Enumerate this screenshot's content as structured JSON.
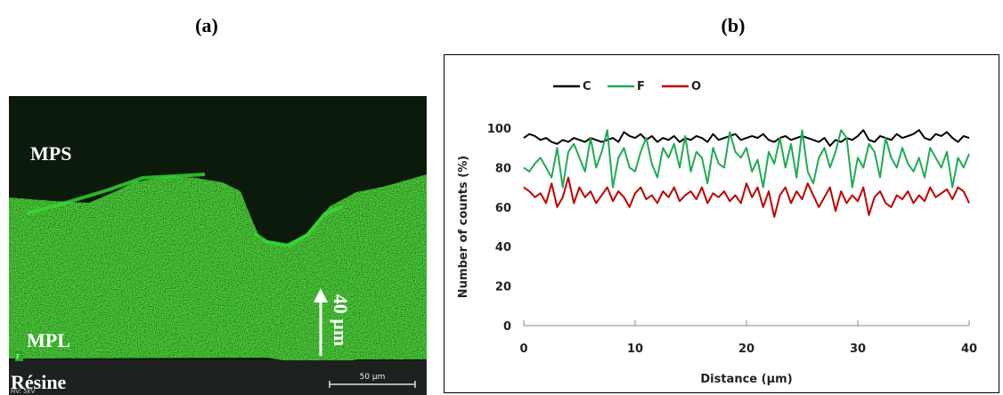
{
  "panels": [
    "(a)",
    "(b)"
  ],
  "image": {
    "labels": [
      "MPS",
      "MPL",
      "Résine"
    ],
    "arrow_label": "40 µm",
    "scale_bar": "50 µm",
    "info": "HV: 5kV",
    "channel": "F"
  },
  "chart_data": {
    "type": "line",
    "xlabel": "Distance (µm)",
    "ylabel": "Number of counts  (%)",
    "xlim": [
      0,
      40
    ],
    "xticks": [
      0,
      10,
      20,
      30,
      40
    ],
    "ylim": [
      0,
      100
    ],
    "yticks": [
      0,
      20,
      40,
      60,
      80,
      100
    ],
    "legend": "top",
    "x": [
      0,
      0.5,
      1,
      1.5,
      2,
      2.5,
      3,
      3.5,
      4,
      4.5,
      5,
      5.5,
      6,
      6.5,
      7,
      7.5,
      8,
      8.5,
      9,
      9.5,
      10,
      10.5,
      11,
      11.5,
      12,
      12.5,
      13,
      13.5,
      14,
      14.5,
      15,
      15.5,
      16,
      16.5,
      17,
      17.5,
      18,
      18.5,
      19,
      19.5,
      20,
      20.5,
      21,
      21.5,
      22,
      22.5,
      23,
      23.5,
      24,
      24.5,
      25,
      25.5,
      26,
      26.5,
      27,
      27.5,
      28,
      28.5,
      29,
      29.5,
      30,
      30.5,
      31,
      31.5,
      32,
      32.5,
      33,
      33.5,
      34,
      34.5,
      35,
      35.5,
      36,
      36.5,
      37,
      37.5,
      38,
      38.5,
      39,
      39.5,
      40
    ],
    "series": [
      {
        "name": "C",
        "color": "#000000",
        "values": [
          95,
          97,
          96,
          94,
          95,
          93,
          92,
          94,
          93,
          95,
          94,
          93,
          95,
          94,
          93,
          94,
          95,
          93,
          98,
          96,
          95,
          97,
          94,
          96,
          93,
          95,
          94,
          96,
          93,
          95,
          94,
          96,
          95,
          93,
          97,
          94,
          95,
          96,
          97,
          94,
          95,
          96,
          95,
          97,
          94,
          93,
          95,
          96,
          94,
          95,
          96,
          95,
          94,
          93,
          95,
          91,
          94,
          93,
          95,
          94,
          96,
          99,
          94,
          93,
          96,
          95,
          94,
          97,
          95,
          96,
          97,
          99,
          95,
          94,
          97,
          96,
          98,
          95,
          93,
          96,
          95
        ]
      },
      {
        "name": "F",
        "color": "#1faa55",
        "values": [
          80,
          78,
          82,
          85,
          80,
          75,
          90,
          70,
          88,
          92,
          85,
          78,
          95,
          80,
          88,
          99,
          70,
          85,
          90,
          80,
          78,
          88,
          95,
          82,
          75,
          90,
          85,
          92,
          80,
          96,
          78,
          88,
          85,
          72,
          90,
          82,
          80,
          98,
          88,
          85,
          90,
          78,
          84,
          70,
          88,
          82,
          95,
          80,
          92,
          75,
          99,
          78,
          72,
          85,
          90,
          80,
          88,
          99,
          95,
          70,
          85,
          80,
          92,
          88,
          75,
          95,
          85,
          80,
          90,
          82,
          78,
          85,
          75,
          90,
          85,
          80,
          88,
          70,
          85,
          80,
          87
        ]
      },
      {
        "name": "O",
        "color": "#c00000",
        "values": [
          70,
          68,
          65,
          67,
          62,
          72,
          60,
          65,
          75,
          62,
          70,
          65,
          68,
          62,
          66,
          70,
          63,
          68,
          65,
          60,
          67,
          70,
          64,
          66,
          62,
          68,
          65,
          70,
          63,
          66,
          68,
          64,
          70,
          62,
          67,
          65,
          68,
          63,
          66,
          62,
          72,
          65,
          70,
          60,
          68,
          55,
          66,
          70,
          62,
          68,
          64,
          72,
          66,
          60,
          65,
          70,
          58,
          68,
          62,
          66,
          63,
          70,
          56,
          65,
          68,
          62,
          60,
          66,
          64,
          68,
          62,
          66,
          63,
          70,
          65,
          67,
          69,
          64,
          70,
          68,
          62
        ]
      }
    ]
  }
}
